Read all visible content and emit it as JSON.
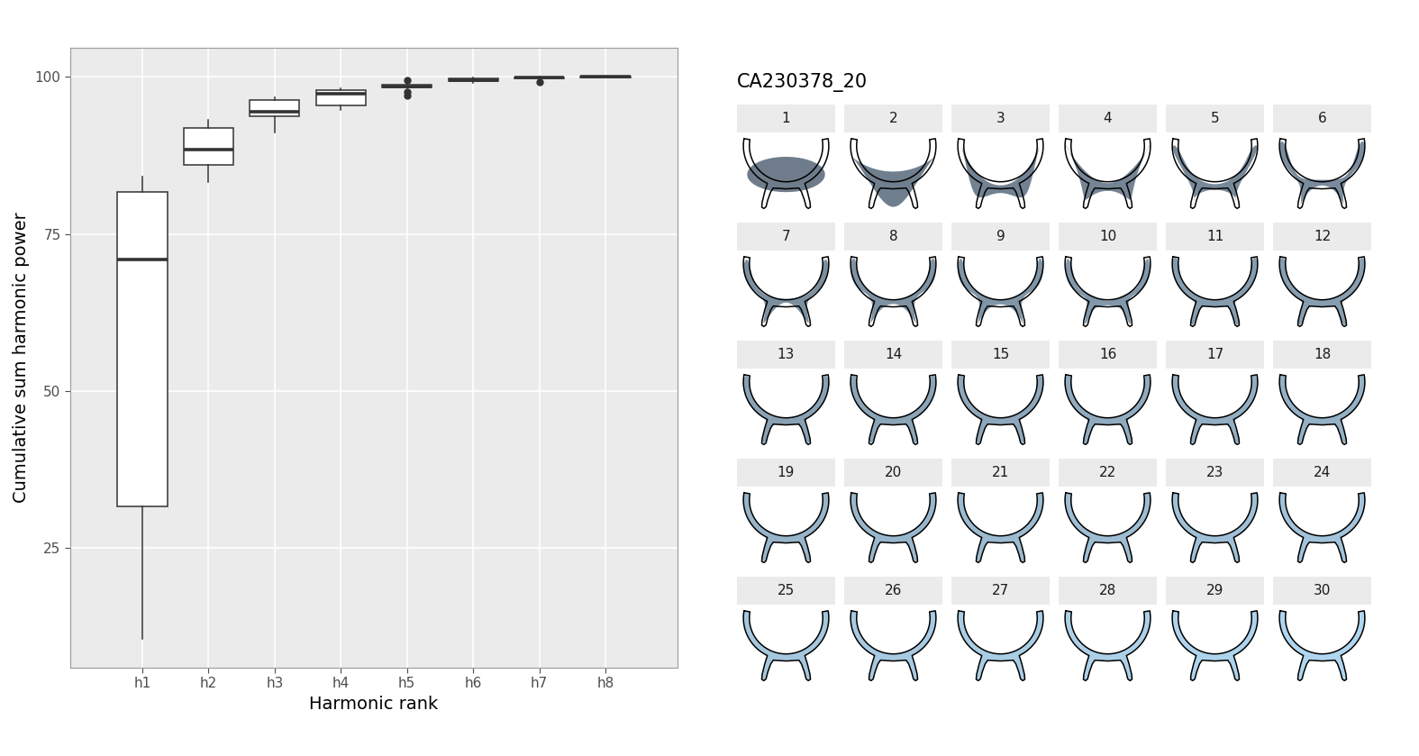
{
  "chart_data": {
    "type": "box",
    "x_label": "Harmonic rank",
    "y_label": "Cumulative sum harmonic power",
    "categories": [
      "h1",
      "h2",
      "h3",
      "h4",
      "h5",
      "h6",
      "h7",
      "h8"
    ],
    "values": [
      {
        "low": 10.6,
        "q1": 31.6,
        "median": 70.9,
        "q3": 81.7,
        "high": 84.1,
        "outliers": []
      },
      {
        "low": 83.3,
        "q1": 85.9,
        "median": 88.4,
        "q3": 91.9,
        "high": 93.1,
        "outliers": []
      },
      {
        "low": 91.1,
        "q1": 93.7,
        "median": 94.4,
        "q3": 96.3,
        "high": 96.7,
        "outliers": []
      },
      {
        "low": 94.7,
        "q1": 95.4,
        "median": 97.3,
        "q3": 97.9,
        "high": 98.1,
        "outliers": []
      },
      {
        "low": 98.1,
        "q1": 98.3,
        "median": 98.4,
        "q3": 98.7,
        "high": 98.9,
        "outliers": [
          99.4,
          97.0,
          97.6
        ]
      },
      {
        "low": 99.0,
        "q1": 99.3,
        "median": 99.5,
        "q3": 99.7,
        "high": 99.9,
        "outliers": []
      },
      {
        "low": 99.6,
        "q1": 99.7,
        "median": 99.8,
        "q3": 99.9,
        "high": 100.0,
        "outliers": [
          99.2
        ]
      },
      {
        "low": 99.9,
        "q1": 99.9,
        "median": 100.0,
        "q3": 100.0,
        "high": 100.0,
        "outliers": []
      }
    ],
    "color": "#ffffff",
    "ylim": [
      6,
      104.6
    ],
    "yticks": [
      25,
      50,
      75,
      100
    ],
    "grid": true
  },
  "outline_panels": {
    "title": "CA230378_20",
    "panels": [
      1,
      2,
      3,
      4,
      5,
      6,
      7,
      8,
      9,
      10,
      11,
      12,
      13,
      14,
      15,
      16,
      17,
      18,
      19,
      20,
      21,
      22,
      23,
      24,
      25,
      26,
      27,
      28,
      29,
      30
    ],
    "colors": [
      "#5e6e7e",
      "#617182",
      "#637586",
      "#66788a",
      "#687c8d",
      "#6b7f91",
      "#6d8395",
      "#708699",
      "#728a9d",
      "#758da1",
      "#7891a5",
      "#7a94a8",
      "#7d97ac",
      "#7f9bb0",
      "#829eb4",
      "#84a2b8",
      "#87a5bc",
      "#89a9c0",
      "#8cacc3",
      "#8eb0c7",
      "#91b3cb",
      "#94b6cf",
      "#96bad3",
      "#99bdd7",
      "#9bc1db",
      "#9ec4de",
      "#a0c8e2",
      "#a3cbe6",
      "#a5cfea",
      "#a8d2ee"
    ]
  }
}
